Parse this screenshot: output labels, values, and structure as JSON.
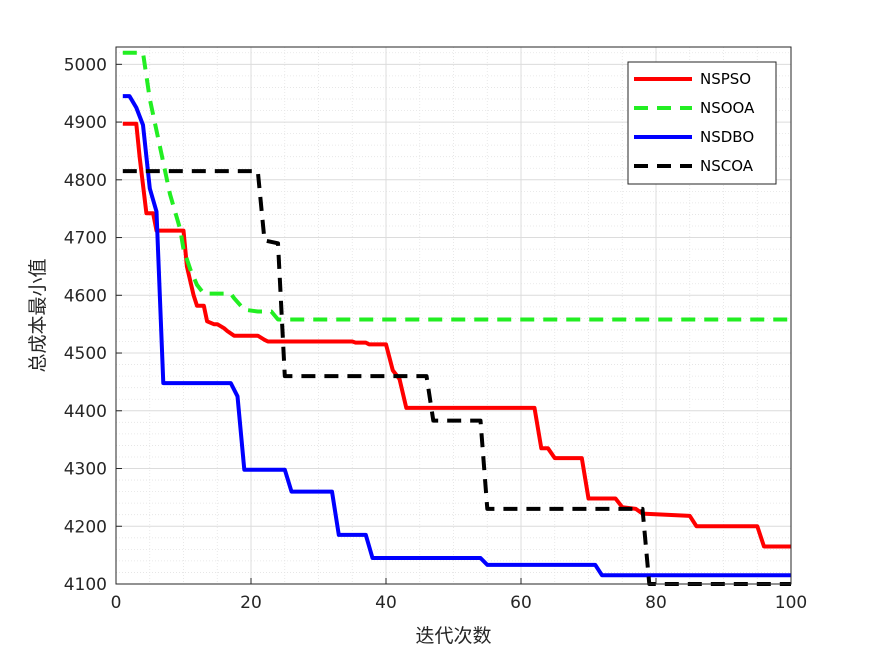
{
  "chart_data": {
    "type": "line",
    "xlabel": "迭代次数",
    "ylabel": "总成本最小值",
    "xlim": [
      0,
      100
    ],
    "ylim": [
      4100,
      5030
    ],
    "xticks": [
      0,
      20,
      40,
      60,
      80,
      100
    ],
    "yticks": [
      4100,
      4200,
      4300,
      4400,
      4500,
      4600,
      4700,
      4800,
      4900,
      5000
    ],
    "grid": true,
    "minor_grid": true,
    "legend_position": "top-right",
    "series": [
      {
        "name": "NSPSO",
        "color": "#ff0000",
        "dash": "solid",
        "x": [
          1,
          3,
          3.5,
          4.5,
          5.5,
          6,
          10,
          10.5,
          11.5,
          12,
          13,
          13.5,
          14.5,
          15,
          16,
          16.5,
          17.5,
          18,
          21,
          22,
          22.5,
          25,
          35,
          35.5,
          37,
          37.5,
          40,
          41,
          42,
          43,
          44,
          62,
          63,
          64,
          65,
          69,
          70,
          71,
          74,
          75,
          77,
          78,
          85,
          86,
          95,
          96,
          100
        ],
        "y": [
          4897,
          4897,
          4840,
          4742,
          4742,
          4712,
          4712,
          4650,
          4600,
          4582,
          4582,
          4555,
          4550,
          4550,
          4543,
          4538,
          4530,
          4530,
          4530,
          4523,
          4520,
          4520,
          4520,
          4518,
          4518,
          4515,
          4515,
          4470,
          4455,
          4405,
          4405,
          4405,
          4335,
          4335,
          4318,
          4318,
          4248,
          4248,
          4248,
          4233,
          4230,
          4222,
          4218,
          4200,
          4200,
          4165,
          4165
        ]
      },
      {
        "name": "NSOOA",
        "color": "#22ee22",
        "dash": "dashed",
        "x": [
          1,
          3,
          4,
          5,
          7,
          8,
          9.5,
          10,
          11,
          12,
          13,
          17,
          17.5,
          19,
          21,
          23,
          24,
          25,
          100
        ],
        "y": [
          5020,
          5020,
          5020,
          4940,
          4830,
          4775,
          4715,
          4680,
          4645,
          4618,
          4603,
          4603,
          4595,
          4575,
          4572,
          4572,
          4558,
          4558,
          4558
        ]
      },
      {
        "name": "NSDBO",
        "color": "#0000ff",
        "dash": "solid",
        "x": [
          1,
          2,
          3,
          4,
          5,
          6,
          7,
          17,
          18,
          19,
          25,
          26,
          32,
          33,
          37,
          38,
          54,
          55,
          71,
          72,
          100
        ],
        "y": [
          4945,
          4945,
          4925,
          4895,
          4785,
          4745,
          4448,
          4448,
          4425,
          4298,
          4298,
          4260,
          4260,
          4185,
          4185,
          4145,
          4145,
          4133,
          4133,
          4115,
          4115
        ]
      },
      {
        "name": "NSCOA",
        "color": "#000000",
        "dash": "dashed",
        "x": [
          1,
          21,
          22,
          24,
          25,
          26,
          46,
          47,
          54,
          55,
          56,
          78,
          79,
          100
        ],
        "y": [
          4815,
          4815,
          4695,
          4690,
          4460,
          4460,
          4460,
          4383,
          4383,
          4230,
          4230,
          4230,
          4100,
          4100
        ]
      }
    ]
  }
}
